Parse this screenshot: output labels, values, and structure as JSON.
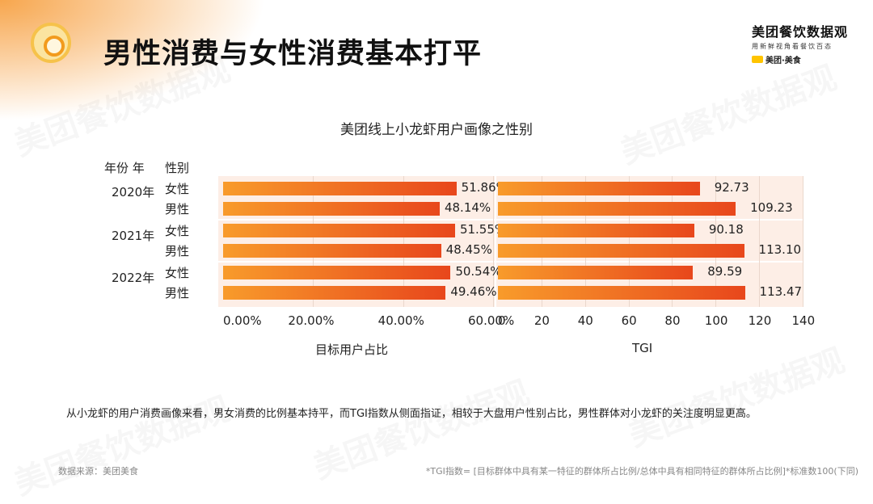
{
  "header": {
    "title": "男性消费与女性消费基本打平",
    "brand_name": "美团餐饮数据观",
    "brand_tagline": "用新鲜视角看餐饮百态",
    "brand_sub": "美团·美食",
    "logo_badge": "美团"
  },
  "watermark_text": "美团餐饮数据观",
  "chart_data": {
    "type": "bar",
    "orientation": "horizontal",
    "title": "美团线上小龙虾用户画像之性别",
    "row_headers": [
      "年份 年",
      "性别"
    ],
    "groups": [
      {
        "year": "2020年",
        "rows": [
          {
            "gender": "女性",
            "share": 51.86,
            "share_label": "51.86%",
            "tgi": 92.73,
            "tgi_label": "92.73"
          },
          {
            "gender": "男性",
            "share": 48.14,
            "share_label": "48.14%",
            "tgi": 109.23,
            "tgi_label": "109.23"
          }
        ]
      },
      {
        "year": "2021年",
        "rows": [
          {
            "gender": "女性",
            "share": 51.55,
            "share_label": "51.55%",
            "tgi": 90.18,
            "tgi_label": "90.18"
          },
          {
            "gender": "男性",
            "share": 48.45,
            "share_label": "48.45%",
            "tgi": 113.1,
            "tgi_label": "113.10"
          }
        ]
      },
      {
        "year": "2022年",
        "rows": [
          {
            "gender": "女性",
            "share": 50.54,
            "share_label": "50.54%",
            "tgi": 89.59,
            "tgi_label": "89.59"
          },
          {
            "gender": "男性",
            "share": 49.46,
            "share_label": "49.46%",
            "tgi": 113.47,
            "tgi_label": "113.47"
          }
        ]
      }
    ],
    "panels": [
      {
        "key": "share",
        "xlabel": "目标用户占比",
        "xlim": [
          0,
          60
        ],
        "ticks": [
          "0.00%",
          "20.00%",
          "40.00%",
          "60.00%"
        ]
      },
      {
        "key": "tgi",
        "xlabel": "TGI",
        "xlim": [
          0,
          140
        ],
        "ticks": [
          "0",
          "20",
          "40",
          "60",
          "80",
          "100",
          "120",
          "140"
        ]
      }
    ],
    "bar_color": "#f0701f",
    "panel_background": "#fdeee6"
  },
  "summary": "从小龙虾的用户消费画像来看，男女消费的比例基本持平，而TGI指数从侧面指证，相较于大盘用户性别占比，男性群体对小龙虾的关注度明显更高。",
  "footer": {
    "source": "数据来源：美团美食",
    "note": "*TGI指数=   [目标群体中具有某一特征的群体所占比例/总体中具有相同特征的群体所占比例]*标准数100(下同)"
  }
}
